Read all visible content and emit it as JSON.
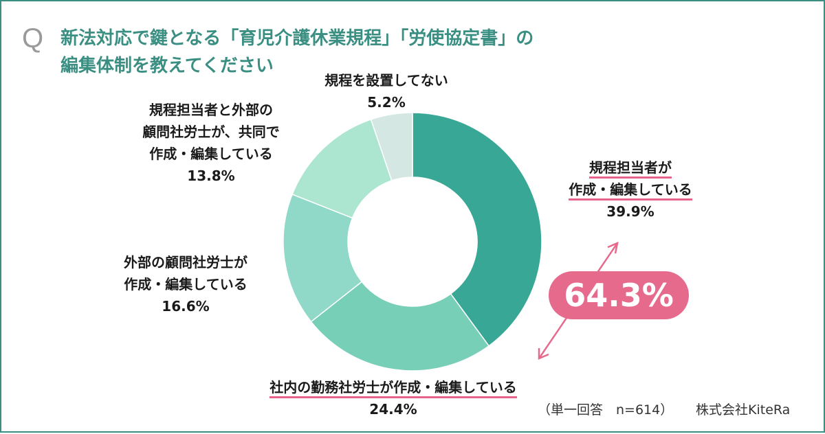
{
  "question": {
    "mark": "Q",
    "line1": "新法対応で鍵となる「育児介護休業規程」「労使協定書」の",
    "line2": "編集体制を教えてください"
  },
  "chart_data": {
    "type": "pie",
    "donut": true,
    "slices": [
      {
        "label": "規程担当者が作成・編集している",
        "value": 39.9,
        "color": "#38a796"
      },
      {
        "label": "社内の勤務社労士が作成・編集している",
        "value": 24.4,
        "color": "#78cfb8"
      },
      {
        "label": "外部の顧問社労士が作成・編集している",
        "value": 16.6,
        "color": "#90d8c8"
      },
      {
        "label": "規程担当者と外部の顧問社労士が、共同で作成・編集している",
        "value": 13.8,
        "color": "#ace6d0"
      },
      {
        "label": "規程を設置してない",
        "value": 5.2,
        "color": "#d5e7e3"
      }
    ],
    "combined_callout": {
      "value": "64.3%",
      "color": "#e56a8c"
    }
  },
  "labels": {
    "s1": {
      "l1": "規程担当者が",
      "l2": "作成・編集している",
      "pct": "39.9%"
    },
    "s2": {
      "l1": "社内の勤務社労士が作成・編集している",
      "pct": "24.4%"
    },
    "s3": {
      "l1": "外部の顧問社労士が",
      "l2": "作成・編集している",
      "pct": "16.6%"
    },
    "s4": {
      "l1": "規程担当者と外部の",
      "l2": "顧問社労士が、共同で",
      "l3": "作成・編集している",
      "pct": "13.8%"
    },
    "s5": {
      "l1": "規程を設置してない",
      "pct": "5.2%"
    }
  },
  "footer": {
    "note": "（単一回答　n=614）",
    "company": "株式会社KiteRa"
  }
}
